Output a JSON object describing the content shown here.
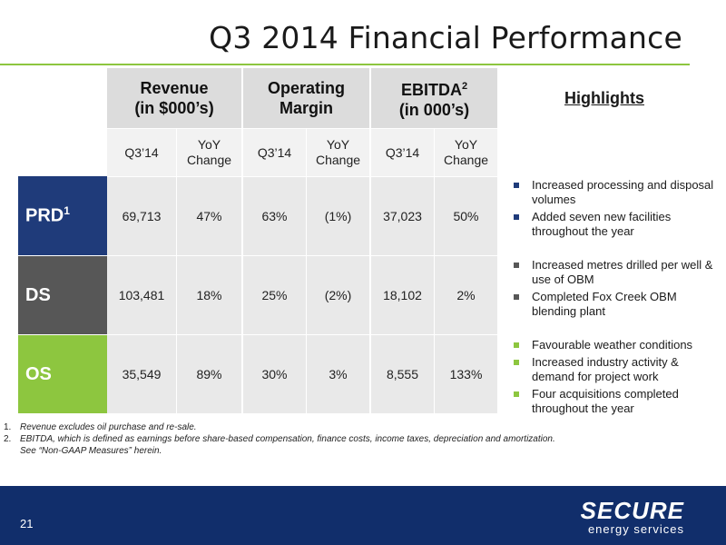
{
  "title": "Q3 2014 Financial Performance",
  "table": {
    "groups": [
      {
        "line1": "Revenue",
        "line2": "(in $000’s)"
      },
      {
        "line1": "Operating",
        "line2": "Margin"
      },
      {
        "line1": "EBITDA",
        "sup": "2",
        "line2": "(in 000’s)"
      }
    ],
    "sub": {
      "q": "Q3’14",
      "yoy1": "YoY",
      "yoy2": "Change"
    },
    "rows": [
      {
        "label": "PRD",
        "sup": "1",
        "values": [
          "69,713",
          "47%",
          "63%",
          "(1%)",
          "37,023",
          "50%"
        ]
      },
      {
        "label": "DS",
        "values": [
          "103,481",
          "18%",
          "25%",
          "(2%)",
          "18,102",
          "2%"
        ]
      },
      {
        "label": "OS",
        "values": [
          "35,549",
          "89%",
          "30%",
          "3%",
          "8,555",
          "133%"
        ]
      }
    ]
  },
  "highlights": {
    "title": "Highlights",
    "prd": [
      "Increased processing and disposal volumes",
      "Added seven new facilities throughout the year"
    ],
    "ds": [
      "Increased metres drilled per well & use of OBM",
      "Completed Fox Creek OBM blending plant"
    ],
    "os": [
      "Favourable weather conditions",
      "Increased industry activity & demand for project work",
      "Four acquisitions completed throughout the year"
    ]
  },
  "notes": [
    {
      "num": "1.",
      "text": "Revenue excludes oil purchase and re-sale."
    },
    {
      "num": "2.",
      "text": "EBITDA, which is defined as earnings before share-based compensation, finance costs, income taxes, depreciation and amortization."
    },
    {
      "num": "",
      "text": "See “Non-GAAP Measures” herein."
    }
  ],
  "footer": {
    "page": "21",
    "logo": "SECURE",
    "logo_sub": "energy services"
  },
  "colors": {
    "prd": "#1f3b7a",
    "ds": "#575757",
    "os": "#8dc63f",
    "footer": "#112e6b",
    "rule": "#8dc63f"
  }
}
